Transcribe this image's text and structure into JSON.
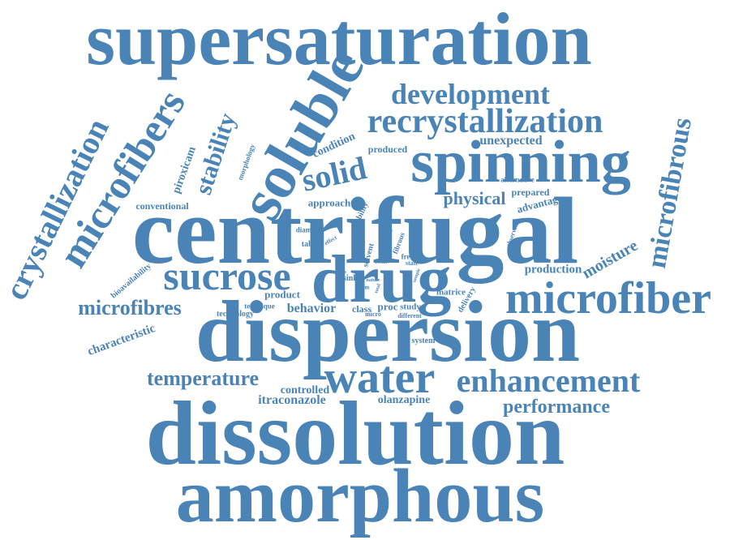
{
  "color": "#4a83b6",
  "words": [
    "supersaturation",
    "centrifugal",
    "dispersion",
    "dissolution",
    "amorphous",
    "spinning",
    "soluble",
    "drug",
    "microfiber",
    "water",
    "enhancement",
    "recrystallization",
    "development",
    "microfibers",
    "crystallization",
    "microfibrous",
    "sucrose",
    "solid",
    "temperature",
    "microfibres",
    "performance",
    "stability",
    "physical",
    "moisture",
    "itraconazole",
    "olanzapine",
    "characteristic",
    "unexpected",
    "condition",
    "production",
    "behavior",
    "controlled",
    "piroxicam",
    "produced",
    "conventional",
    "prepared",
    "advantage",
    "approach",
    "alternative",
    "product",
    "bioavailability",
    "technology",
    "technique",
    "class",
    "proc",
    "study",
    "matrice",
    "delivery",
    "system",
    "tablet",
    "diameter",
    "crystalline",
    "solubility",
    "solvent",
    "morphology",
    "observed",
    "sink",
    "free",
    "state",
    "different",
    "micro",
    "capacity",
    "fibrous",
    "effect",
    "result",
    "loaded",
    "form",
    "nature",
    "total",
    "sample"
  ]
}
